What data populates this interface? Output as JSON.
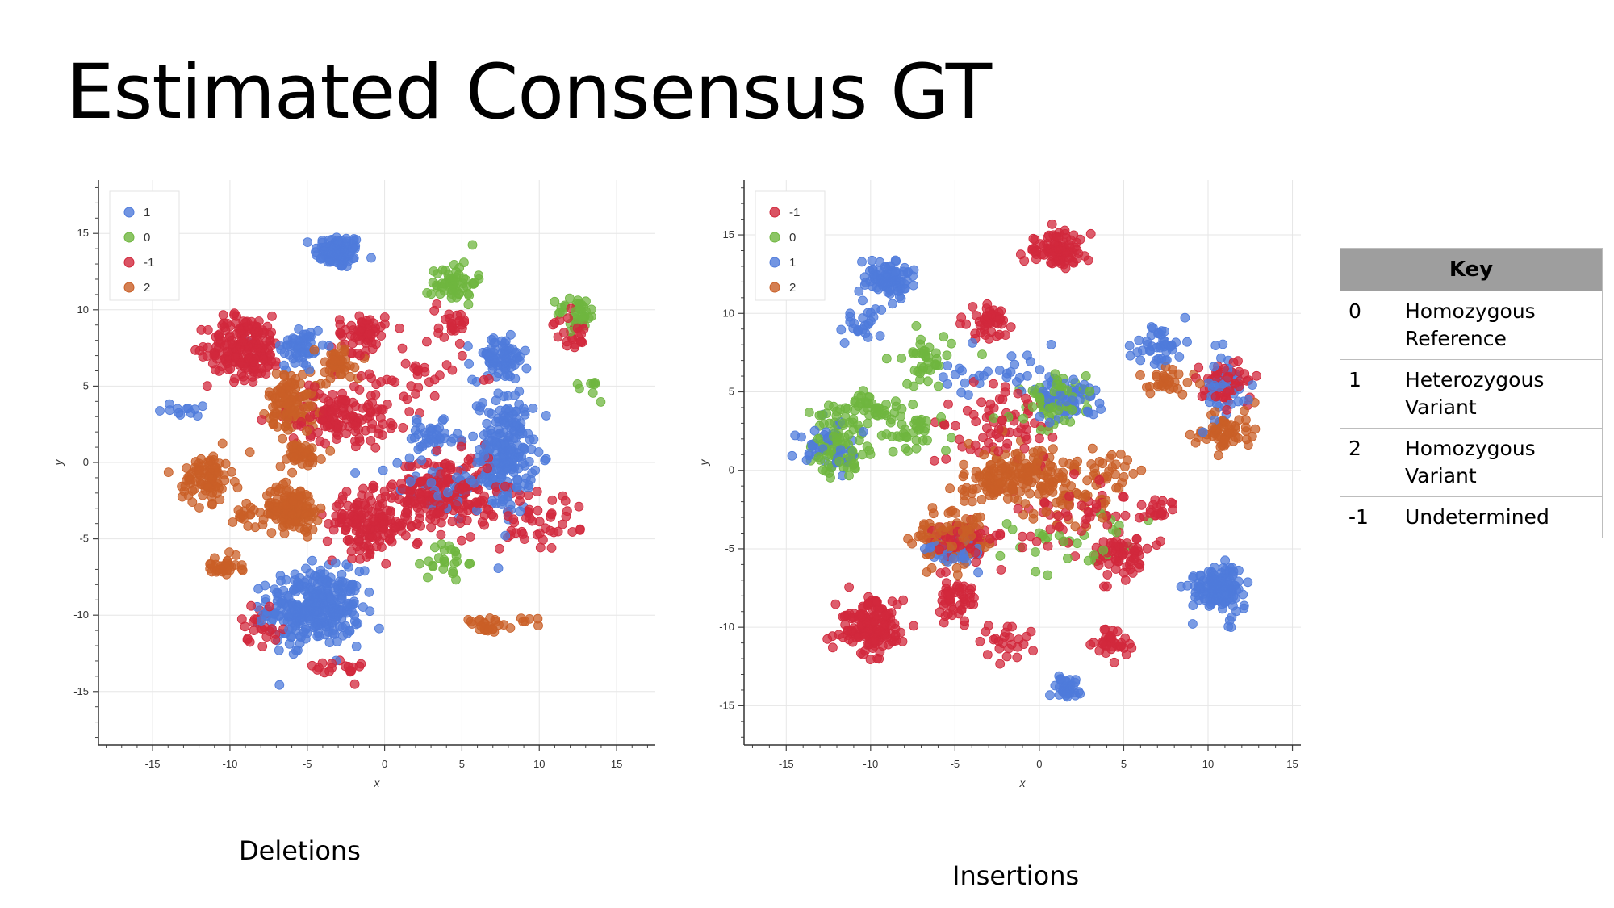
{
  "title": "Estimated Consensus GT",
  "colors": {
    "1": "#4f7bdb",
    "0": "#6fb63f",
    "-1": "#d1283c",
    "2": "#c95f27"
  },
  "chart_data": [
    {
      "type": "scatter",
      "name": "Deletions",
      "caption": "Deletions",
      "xlabel": "x",
      "ylabel": "y",
      "xlim": [
        -18.5,
        17.5
      ],
      "ylim": [
        -18.5,
        18.5
      ],
      "xticks": [
        -15,
        -10,
        -5,
        0,
        5,
        10,
        15
      ],
      "yticks": [
        -15,
        -10,
        -5,
        0,
        5,
        10,
        15
      ],
      "grid": true,
      "legend_position": "top-left",
      "legend": [
        "1",
        "0",
        "-1",
        "2"
      ],
      "series": [
        {
          "name": "1",
          "clusters": [
            [
              -3,
              13.8,
              1.4,
              1.0,
              90
            ],
            [
              -5.5,
              7.5,
              1.5,
              1.5,
              55
            ],
            [
              -4.5,
              -9.5,
              2.7,
              2.2,
              320
            ],
            [
              7.8,
              0.5,
              1.6,
              3.5,
              220
            ],
            [
              7.5,
              6.8,
              1.6,
              1.3,
              80
            ],
            [
              3,
              1.5,
              1.6,
              1.0,
              40
            ],
            [
              -13,
              3.5,
              1.3,
              0.5,
              12
            ],
            [
              3,
              -1.5,
              3.5,
              1.5,
              40
            ]
          ]
        },
        {
          "name": "0",
          "clusters": [
            [
              4.5,
              11.8,
              1.3,
              1.3,
              55
            ],
            [
              12.5,
              9.8,
              1.2,
              1.0,
              40
            ],
            [
              4,
              -6.5,
              1.2,
              1.2,
              25
            ],
            [
              13.5,
              5,
              0.6,
              1.0,
              8
            ]
          ]
        },
        {
          "name": "-1",
          "clusters": [
            [
              -9,
              7.5,
              2.2,
              1.9,
              200
            ],
            [
              -1.5,
              8.5,
              1.4,
              1.2,
              60
            ],
            [
              4.5,
              9.3,
              1.0,
              1.2,
              25
            ],
            [
              -1,
              -4,
              2.5,
              1.8,
              160
            ],
            [
              4,
              -2,
              3,
              2.3,
              220
            ],
            [
              -3,
              3,
              3,
              1.5,
              120
            ],
            [
              12,
              8.5,
              1.0,
              1.0,
              25
            ],
            [
              -8,
              -10.5,
              1.2,
              1.2,
              25
            ],
            [
              10,
              -4,
              3,
              2.5,
              45
            ],
            [
              -3,
              -13.5,
              1.5,
              0.7,
              18
            ],
            [
              1,
              5,
              4,
              2.5,
              50
            ]
          ]
        },
        {
          "name": "2",
          "clusters": [
            [
              -6,
              4,
              1.4,
              1.8,
              110
            ],
            [
              -5.5,
              0.5,
              1.3,
              0.8,
              45
            ],
            [
              -6,
              -3,
              1.6,
              1.3,
              140
            ],
            [
              -11.5,
              -1,
              1.4,
              1.4,
              90
            ],
            [
              -10.5,
              -6.8,
              1.2,
              0.6,
              30
            ],
            [
              6.5,
              -10.8,
              1.3,
              0.6,
              25
            ],
            [
              -3,
              6.5,
              1.3,
              1.0,
              50
            ],
            [
              9.5,
              -10.4,
              0.7,
              0.3,
              6
            ],
            [
              -9,
              -3.5,
              0.8,
              0.8,
              15
            ]
          ]
        }
      ]
    },
    {
      "type": "scatter",
      "name": "Insertions",
      "caption": "Insertions",
      "xlabel": "x",
      "ylabel": "y",
      "xlim": [
        -17.5,
        15.5
      ],
      "ylim": [
        -17.5,
        18.5
      ],
      "xticks": [
        -15,
        -10,
        -5,
        0,
        5,
        10,
        15
      ],
      "yticks": [
        -15,
        -10,
        -5,
        0,
        5,
        10,
        15
      ],
      "grid": true,
      "legend_position": "top-left",
      "legend": [
        "-1",
        "0",
        "1",
        "2"
      ],
      "series": [
        {
          "name": "-1",
          "clusters": [
            [
              1,
              14,
              1.7,
              1.0,
              90
            ],
            [
              -3,
              9.5,
              1.3,
              1.0,
              45
            ],
            [
              -10,
              -10,
              1.8,
              1.5,
              170
            ],
            [
              -5,
              -8,
              1.2,
              1.5,
              50
            ],
            [
              -4.5,
              -4.5,
              1.5,
              1.0,
              70
            ],
            [
              5,
              -5.5,
              1.5,
              1.2,
              60
            ],
            [
              4.5,
              -11,
              1.0,
              0.8,
              35
            ],
            [
              11,
              5.5,
              1.5,
              1.2,
              60
            ],
            [
              7,
              -2.5,
              1.0,
              1.0,
              20
            ],
            [
              -2,
              3,
              3,
              2,
              70
            ],
            [
              2,
              -3,
              4,
              2.5,
              60
            ],
            [
              -2,
              -11,
              1.5,
              1.2,
              25
            ]
          ]
        },
        {
          "name": "0",
          "clusters": [
            [
              -12,
              1.5,
              1.5,
              2,
              90
            ],
            [
              -10,
              4,
              2,
              0.8,
              40
            ],
            [
              1,
              4.5,
              2,
              1.5,
              60
            ],
            [
              -6.5,
              7,
              1.5,
              1.5,
              40
            ],
            [
              -8,
              2.5,
              2,
              1.2,
              40
            ],
            [
              2,
              -5,
              4,
              2,
              30
            ]
          ]
        },
        {
          "name": "1",
          "clusters": [
            [
              -9,
              12.3,
              1.3,
              1.0,
              90
            ],
            [
              -10.5,
              9.5,
              1.0,
              1.0,
              25
            ],
            [
              10.5,
              -7.5,
              1.3,
              1.4,
              140
            ],
            [
              1.5,
              -13.8,
              0.8,
              0.8,
              35
            ],
            [
              7,
              8,
              1.4,
              1.2,
              45
            ],
            [
              1.5,
              4.5,
              2,
              1.2,
              60
            ],
            [
              -12.5,
              1.5,
              1.5,
              1.5,
              40
            ],
            [
              -5,
              -5,
              1.5,
              1.0,
              45
            ],
            [
              11,
              5,
              1.2,
              2.5,
              40
            ],
            [
              -3,
              6,
              3,
              2,
              30
            ]
          ]
        },
        {
          "name": "2",
          "clusters": [
            [
              -1,
              0,
              3,
              1.5,
              140
            ],
            [
              -5,
              -4.2,
              2,
              1.6,
              110
            ],
            [
              -3,
              -1,
              1.5,
              1.0,
              40
            ],
            [
              11,
              2.5,
              1.5,
              1.2,
              60
            ],
            [
              7.5,
              5.5,
              1.5,
              1.0,
              30
            ],
            [
              4,
              0,
              2,
              1.0,
              25
            ],
            [
              2,
              -2,
              2.5,
              1.5,
              40
            ]
          ]
        }
      ]
    }
  ],
  "key": {
    "header": "Key",
    "rows": [
      {
        "code": "0",
        "line1": "Homozygous",
        "line2": "Reference"
      },
      {
        "code": "1",
        "line1": "Heterozygous",
        "line2": "Variant"
      },
      {
        "code": "2",
        "line1": "Homozygous",
        "line2": "Variant"
      },
      {
        "code": "-1",
        "line1": "Undetermined",
        "line2": ""
      }
    ]
  }
}
